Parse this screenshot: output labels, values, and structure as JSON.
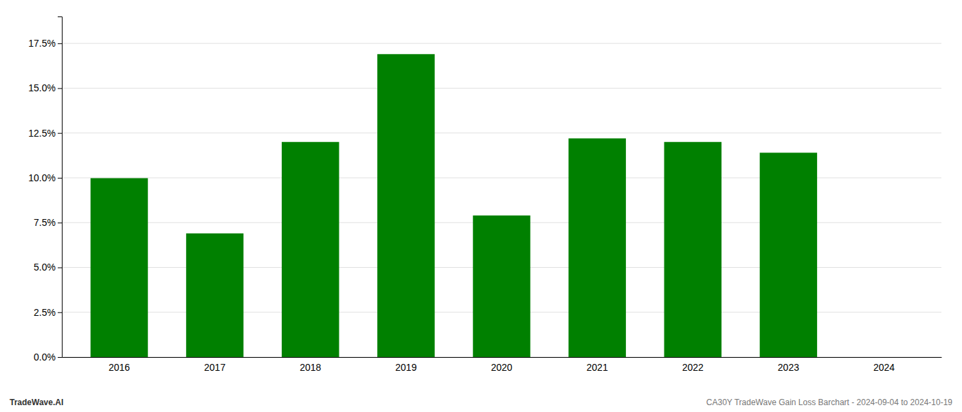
{
  "chart_data": {
    "type": "bar",
    "categories": [
      "2016",
      "2017",
      "2018",
      "2019",
      "2020",
      "2021",
      "2022",
      "2023",
      "2024"
    ],
    "values": [
      0.0998,
      0.069,
      0.12,
      0.169,
      0.079,
      0.122,
      0.12,
      0.114,
      0.0
    ],
    "color": "#008000",
    "ylim": [
      0,
      0.19
    ],
    "yticks": [
      {
        "value": 0.0,
        "label": "0.0%"
      },
      {
        "value": 0.025,
        "label": "2.5%"
      },
      {
        "value": 0.05,
        "label": "5.0%"
      },
      {
        "value": 0.075,
        "label": "7.5%"
      },
      {
        "value": 0.1,
        "label": "10.0%"
      },
      {
        "value": 0.125,
        "label": "12.5%"
      },
      {
        "value": 0.15,
        "label": "15.0%"
      },
      {
        "value": 0.175,
        "label": "17.5%"
      }
    ],
    "grid": true,
    "annotations": [
      "TradeWave.AI",
      "CA30Y TradeWave Gain Loss Barchart - 2024-09-04 to 2024-10-19"
    ]
  }
}
